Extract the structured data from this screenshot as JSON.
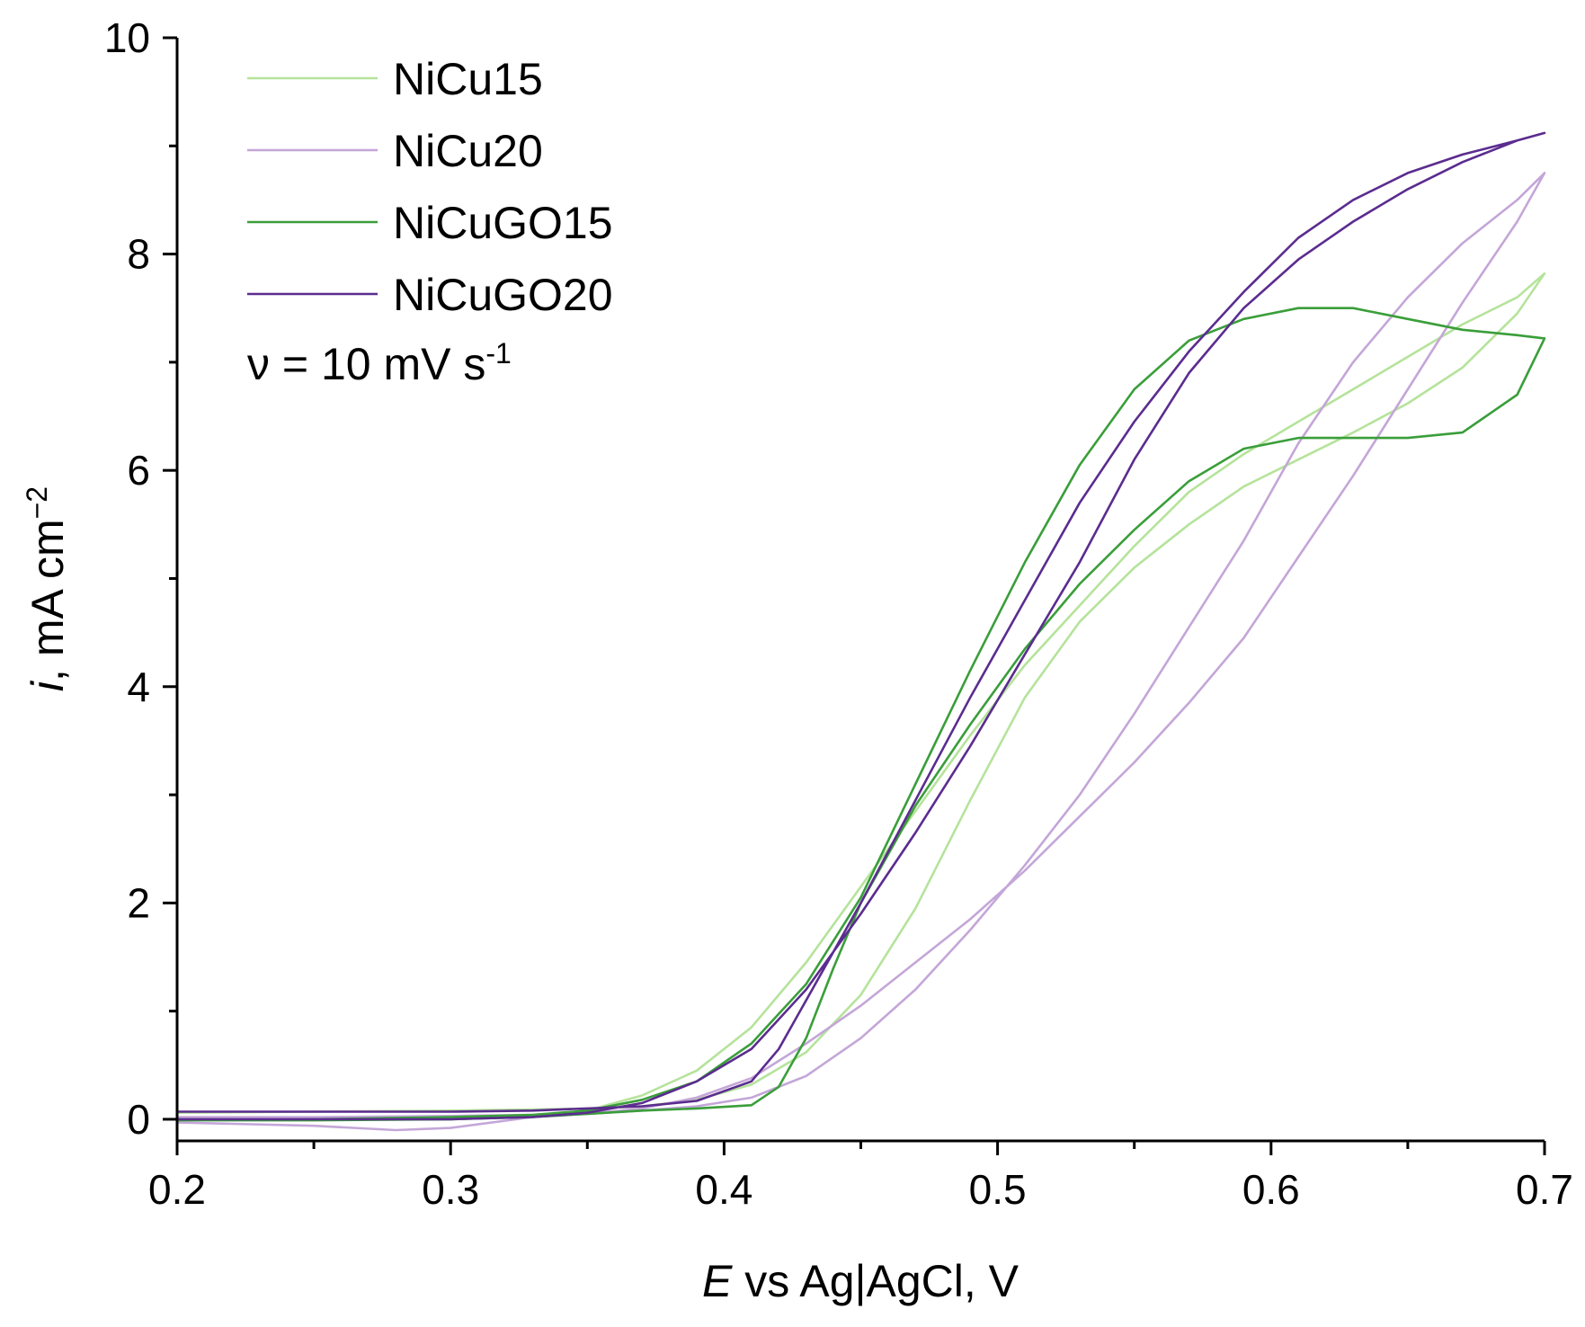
{
  "chart_data": {
    "type": "line",
    "title": "",
    "xlabel": {
      "var": "E",
      "rest": " vs Ag|AgCl, V"
    },
    "ylabel": {
      "var": "i",
      "rest": ", mA cm",
      "sup": "−2"
    },
    "xlim": [
      0.2,
      0.7
    ],
    "ylim": [
      -0.2,
      10
    ],
    "grid": false,
    "legend_position": "top-left",
    "xticks": [
      "0.2",
      "0.3",
      "0.4",
      "0.5",
      "0.6",
      "0.7"
    ],
    "yticks": [
      "0",
      "2",
      "4",
      "6",
      "8",
      "10"
    ],
    "annotation": {
      "main": "ν = 10 mV s",
      "sup": "-1"
    },
    "series": [
      {
        "name": "NiCu15",
        "color": "#b5e39b",
        "x": [
          0.2,
          0.25,
          0.3,
          0.33,
          0.35,
          0.37,
          0.39,
          0.41,
          0.43,
          0.45,
          0.47,
          0.49,
          0.51,
          0.53,
          0.55,
          0.57,
          0.59,
          0.61,
          0.63,
          0.65,
          0.67,
          0.69,
          0.7,
          0.69,
          0.67,
          0.65,
          0.63,
          0.61,
          0.59,
          0.57,
          0.55,
          0.53,
          0.51,
          0.49,
          0.47,
          0.45,
          0.43,
          0.41,
          0.39,
          0.37,
          0.35,
          0.33,
          0.3,
          0.25,
          0.2
        ],
        "y": [
          0.06,
          0.07,
          0.08,
          0.09,
          0.1,
          0.12,
          0.18,
          0.32,
          0.62,
          1.15,
          1.95,
          2.95,
          3.9,
          4.6,
          5.1,
          5.5,
          5.85,
          6.1,
          6.35,
          6.62,
          6.95,
          7.45,
          7.82,
          7.6,
          7.35,
          7.05,
          6.75,
          6.45,
          6.15,
          5.8,
          5.3,
          4.75,
          4.2,
          3.55,
          2.85,
          2.15,
          1.45,
          0.85,
          0.45,
          0.22,
          0.08,
          0.02,
          0.0,
          0.0,
          0.0
        ]
      },
      {
        "name": "NiCu20",
        "color": "#c4a6d8",
        "x": [
          0.2,
          0.25,
          0.28,
          0.3,
          0.33,
          0.35,
          0.37,
          0.39,
          0.41,
          0.43,
          0.45,
          0.47,
          0.49,
          0.51,
          0.53,
          0.55,
          0.57,
          0.59,
          0.61,
          0.63,
          0.65,
          0.67,
          0.69,
          0.7,
          0.69,
          0.67,
          0.65,
          0.63,
          0.61,
          0.59,
          0.57,
          0.55,
          0.53,
          0.51,
          0.49,
          0.47,
          0.45,
          0.43,
          0.41,
          0.39,
          0.37,
          0.35,
          0.33,
          0.3,
          0.25,
          0.2
        ],
        "y": [
          -0.03,
          -0.06,
          -0.1,
          -0.08,
          0.02,
          0.05,
          0.08,
          0.12,
          0.2,
          0.4,
          0.75,
          1.2,
          1.75,
          2.35,
          3.0,
          3.75,
          4.55,
          5.35,
          6.25,
          7.0,
          7.6,
          8.1,
          8.5,
          8.75,
          8.3,
          7.55,
          6.75,
          5.95,
          5.2,
          4.45,
          3.85,
          3.3,
          2.8,
          2.3,
          1.85,
          1.45,
          1.05,
          0.7,
          0.38,
          0.2,
          0.1,
          0.05,
          0.04,
          0.03,
          0.02,
          0.02
        ]
      },
      {
        "name": "NiCuGO15",
        "color": "#3a9e3a",
        "x": [
          0.2,
          0.25,
          0.3,
          0.33,
          0.35,
          0.37,
          0.39,
          0.41,
          0.42,
          0.43,
          0.44,
          0.45,
          0.47,
          0.49,
          0.51,
          0.53,
          0.55,
          0.57,
          0.59,
          0.61,
          0.63,
          0.65,
          0.67,
          0.69,
          0.7,
          0.69,
          0.67,
          0.65,
          0.63,
          0.61,
          0.59,
          0.57,
          0.55,
          0.53,
          0.51,
          0.49,
          0.47,
          0.45,
          0.43,
          0.41,
          0.39,
          0.37,
          0.35,
          0.33,
          0.3,
          0.25,
          0.2
        ],
        "y": [
          -0.01,
          -0.01,
          0.0,
          0.02,
          0.05,
          0.08,
          0.1,
          0.13,
          0.3,
          0.75,
          1.4,
          2.0,
          2.9,
          3.65,
          4.35,
          4.95,
          5.45,
          5.9,
          6.2,
          6.3,
          6.3,
          6.3,
          6.35,
          6.7,
          7.22,
          7.25,
          7.3,
          7.4,
          7.5,
          7.5,
          7.4,
          7.2,
          6.75,
          6.05,
          5.15,
          4.15,
          3.1,
          2.05,
          1.25,
          0.7,
          0.35,
          0.18,
          0.08,
          0.04,
          0.02,
          0.0,
          -0.01
        ]
      },
      {
        "name": "NiCuGO20",
        "color": "#5b2c8f",
        "x": [
          0.2,
          0.25,
          0.3,
          0.33,
          0.35,
          0.37,
          0.39,
          0.41,
          0.42,
          0.43,
          0.45,
          0.47,
          0.49,
          0.51,
          0.53,
          0.55,
          0.57,
          0.59,
          0.61,
          0.63,
          0.65,
          0.67,
          0.69,
          0.7,
          0.69,
          0.67,
          0.65,
          0.63,
          0.61,
          0.59,
          0.57,
          0.55,
          0.53,
          0.51,
          0.49,
          0.47,
          0.45,
          0.43,
          0.41,
          0.39,
          0.37,
          0.35,
          0.33,
          0.3,
          0.25,
          0.2
        ],
        "y": [
          0.07,
          0.07,
          0.07,
          0.08,
          0.1,
          0.12,
          0.17,
          0.35,
          0.65,
          1.1,
          2.0,
          2.95,
          3.9,
          4.8,
          5.7,
          6.45,
          7.1,
          7.65,
          8.15,
          8.5,
          8.75,
          8.92,
          9.05,
          9.12,
          9.05,
          8.85,
          8.6,
          8.3,
          7.95,
          7.5,
          6.9,
          6.1,
          5.15,
          4.3,
          3.45,
          2.65,
          1.9,
          1.2,
          0.65,
          0.35,
          0.15,
          0.06,
          0.02,
          0.0,
          0.0,
          0.0
        ]
      }
    ]
  }
}
